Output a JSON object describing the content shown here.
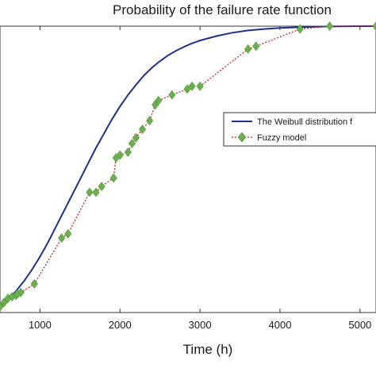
{
  "chart_data": {
    "type": "line",
    "title": "Probability of the failure rate function",
    "xlabel": "Time (h)",
    "ylabel": "",
    "xlim": [
      500,
      5200
    ],
    "ylim": [
      0.0,
      1.0
    ],
    "xticks": [
      1000,
      2000,
      3000,
      4000,
      5000
    ],
    "xtick_labels": [
      "1000",
      "2000",
      "3000",
      "4000",
      "5000"
    ],
    "grid": false,
    "legend_position": "right",
    "series": [
      {
        "name": "The Weibull distribution f",
        "style": "solid",
        "color": "#1f2f8f",
        "marker": "none",
        "x": [
          500,
          600,
          700,
          800,
          900,
          1000,
          1100,
          1200,
          1300,
          1400,
          1500,
          1600,
          1700,
          1800,
          1900,
          2000,
          2100,
          2200,
          2300,
          2400,
          2500,
          2600,
          2700,
          2800,
          2900,
          3000,
          3200,
          3400,
          3600,
          3800,
          4000,
          4300,
          4600,
          5000,
          5200
        ],
        "y": [
          0.02,
          0.045,
          0.075,
          0.11,
          0.15,
          0.195,
          0.245,
          0.3,
          0.355,
          0.41,
          0.465,
          0.52,
          0.575,
          0.625,
          0.675,
          0.72,
          0.76,
          0.795,
          0.828,
          0.855,
          0.878,
          0.898,
          0.914,
          0.928,
          0.94,
          0.95,
          0.965,
          0.977,
          0.985,
          0.99,
          0.994,
          0.997,
          0.999,
          1.0,
          1.0
        ]
      },
      {
        "name": "Fuzzy model",
        "style": "dotted",
        "color": "#d42020",
        "marker": "diamond",
        "marker_color": "#6ab04c",
        "x": [
          500,
          550,
          600,
          650,
          700,
          720,
          760,
          930,
          1270,
          1350,
          1620,
          1700,
          1770,
          1920,
          1950,
          2000,
          2100,
          2150,
          2200,
          2280,
          2370,
          2440,
          2480,
          2650,
          2840,
          2900,
          3000,
          3600,
          3700,
          4250,
          4620,
          5200
        ],
        "y": [
          0.02,
          0.035,
          0.05,
          0.055,
          0.06,
          0.065,
          0.07,
          0.1,
          0.26,
          0.275,
          0.42,
          0.42,
          0.44,
          0.47,
          0.54,
          0.55,
          0.56,
          0.59,
          0.61,
          0.64,
          0.67,
          0.725,
          0.74,
          0.76,
          0.78,
          0.79,
          0.79,
          0.92,
          0.93,
          0.99,
          1.0,
          1.0
        ]
      }
    ]
  }
}
